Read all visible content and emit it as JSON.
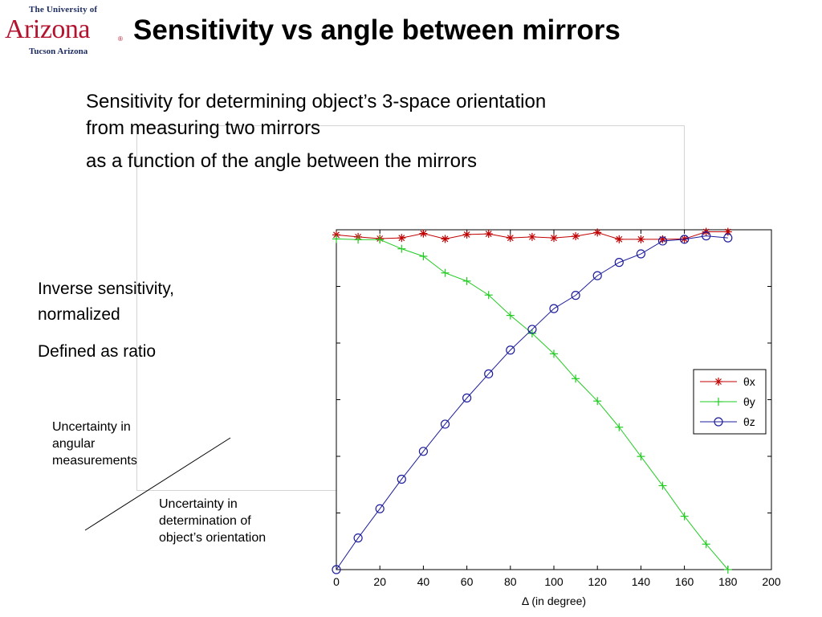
{
  "logo": {
    "line1": "The University of",
    "line2": "Arizona",
    "line3": "Tucson Arizona",
    "reg": "®"
  },
  "slide": {
    "title": "Sensitivity vs angle between mirrors",
    "desc_line1": "Sensitivity for determining object’s 3-space orientation",
    "desc_line2": "from measuring two mirrors",
    "desc_line3": "as a function of the angle between the mirrors",
    "side_line1": "Inverse sensitivity,",
    "side_line2": "normalized",
    "side_line3": "Defined as ratio",
    "numerator_lines": [
      "Uncertainty in",
      "angular",
      "measurements"
    ],
    "denominator_lines": [
      "Uncertainty in",
      "determination of",
      "object’s orientation"
    ]
  },
  "colors": {
    "theta_x": "#c00000",
    "theta_y": "#22cc22",
    "theta_z": "#1c1c9c",
    "logo_red": "#b3132e",
    "logo_navy": "#1b2a5e"
  },
  "chart_data": {
    "type": "line",
    "title": "",
    "xlabel": "Δ (in degree)",
    "ylabel": "",
    "xlim": [
      0,
      200
    ],
    "ylim": [
      0,
      1.0
    ],
    "x_ticks": [
      "0",
      "20",
      "40",
      "60",
      "80",
      "100",
      "120",
      "140",
      "160",
      "180",
      "200"
    ],
    "grid": false,
    "legend_position": "right",
    "x": [
      0,
      10,
      20,
      30,
      40,
      50,
      60,
      70,
      80,
      90,
      100,
      110,
      120,
      130,
      140,
      150,
      160,
      170,
      180
    ],
    "series": [
      {
        "name": "θx",
        "marker": "*",
        "color": "#c00000",
        "values": [
          0.985,
          0.979,
          0.974,
          0.976,
          0.989,
          0.973,
          0.986,
          0.988,
          0.976,
          0.979,
          0.976,
          0.981,
          0.992,
          0.972,
          0.972,
          0.972,
          0.973,
          0.994,
          0.994
        ]
      },
      {
        "name": "θy",
        "marker": "+",
        "color": "#22cc22",
        "values": [
          0.973,
          0.971,
          0.971,
          0.944,
          0.922,
          0.873,
          0.849,
          0.808,
          0.748,
          0.695,
          0.635,
          0.562,
          0.496,
          0.419,
          0.333,
          0.247,
          0.157,
          0.075,
          0.0
        ]
      },
      {
        "name": "θz",
        "marker": "o",
        "color": "#1c1c9c",
        "values": [
          0.0,
          0.093,
          0.179,
          0.266,
          0.348,
          0.428,
          0.505,
          0.576,
          0.646,
          0.707,
          0.768,
          0.807,
          0.865,
          0.904,
          0.929,
          0.967,
          0.972,
          0.982,
          0.976
        ]
      }
    ]
  }
}
